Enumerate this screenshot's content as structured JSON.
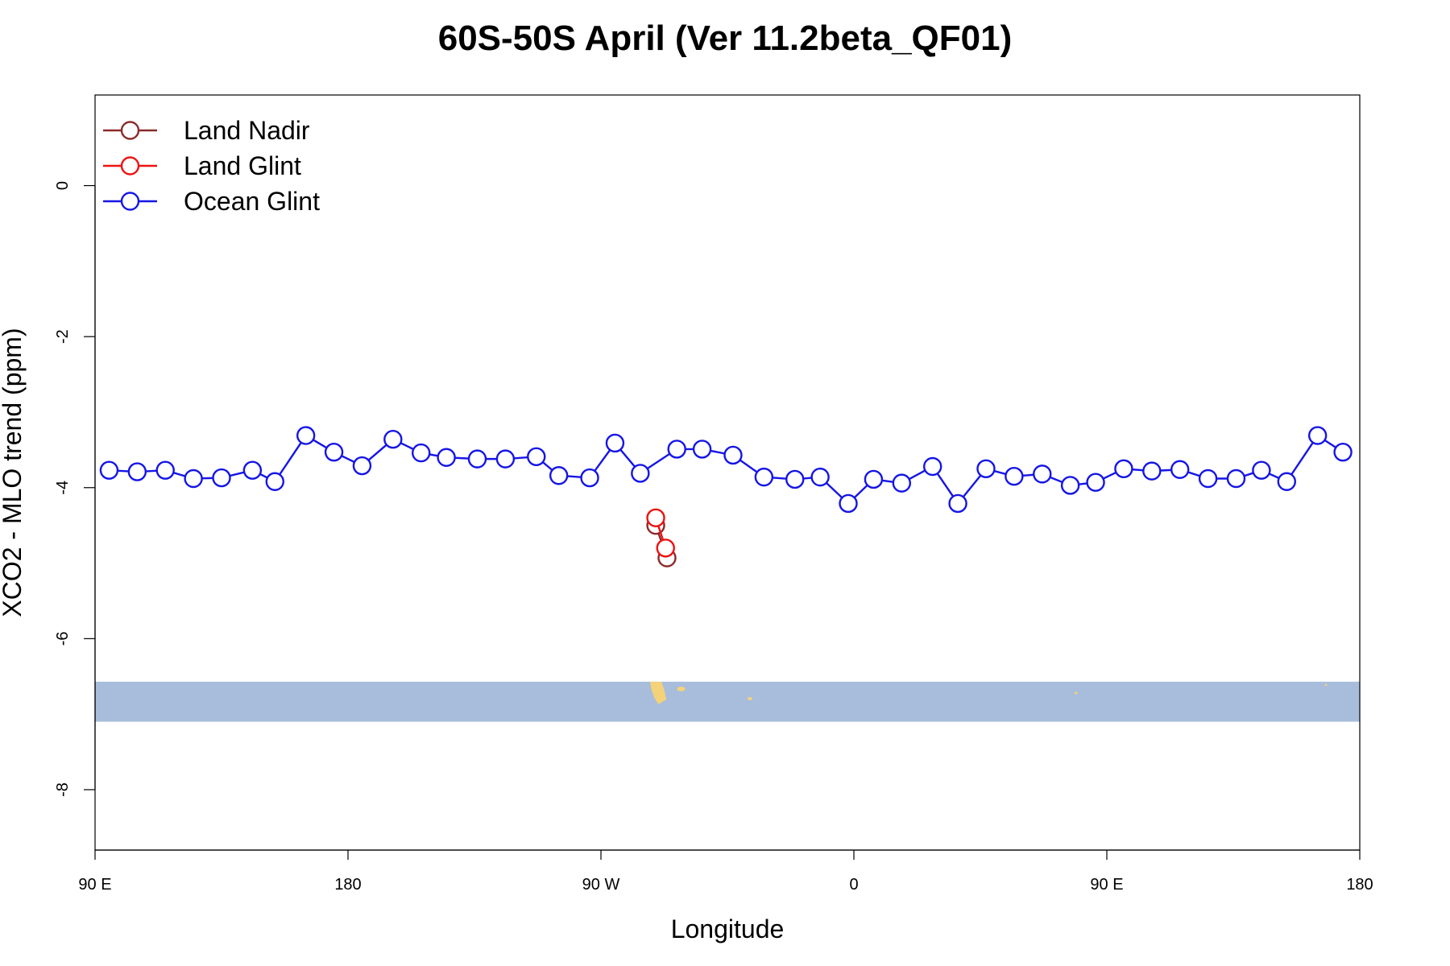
{
  "chart_data": {
    "type": "line",
    "title": "60S-50S April (Ver 11.2beta_QF01)",
    "xlabel": "Longitude",
    "ylabel": "XCO2 - MLO trend (ppm)",
    "xlim": [
      90,
      540
    ],
    "ylim": [
      -8.8,
      1.2
    ],
    "x_ticks": [
      {
        "value": 90,
        "label": "90 E"
      },
      {
        "value": 180,
        "label": "180"
      },
      {
        "value": 270,
        "label": "90 W"
      },
      {
        "value": 360,
        "label": "0"
      },
      {
        "value": 450,
        "label": "90 E"
      },
      {
        "value": 540,
        "label": "180"
      }
    ],
    "y_ticks": [
      {
        "value": 0,
        "label": "0"
      },
      {
        "value": -2,
        "label": "-2"
      },
      {
        "value": -4,
        "label": "-4"
      },
      {
        "value": -6,
        "label": "-6"
      },
      {
        "value": -8,
        "label": "-8"
      }
    ],
    "legend": {
      "position": "top-left",
      "entries": [
        {
          "name": "Land Nadir",
          "color": "#8b2a2a"
        },
        {
          "name": "Land Glint",
          "color": "#ee1111"
        },
        {
          "name": "Ocean Glint",
          "color": "#1515e6"
        }
      ]
    },
    "series": [
      {
        "name": "Land Nadir",
        "color": "#8b2a2a",
        "x": [
          289.5,
          293.5
        ],
        "y": [
          -4.5,
          -4.93
        ]
      },
      {
        "name": "Land Glint",
        "color": "#ee1111",
        "x": [
          289.5,
          293
        ],
        "y": [
          -4.4,
          -4.8
        ]
      },
      {
        "name": "Ocean Glint",
        "color": "#1515e6",
        "x": [
          95,
          105,
          115,
          125,
          135,
          146,
          154,
          165,
          175,
          185,
          196,
          206,
          215,
          226,
          236,
          247,
          255,
          266,
          275,
          284,
          297,
          306,
          317,
          328,
          339,
          348,
          358,
          367,
          377,
          388,
          397,
          407,
          417,
          427,
          437,
          446,
          456,
          466,
          476,
          486,
          496,
          505,
          514,
          525,
          534
        ],
        "y": [
          -3.77,
          -3.79,
          -3.77,
          -3.88,
          -3.87,
          -3.77,
          -3.92,
          -3.31,
          -3.53,
          -3.71,
          -3.36,
          -3.54,
          -3.6,
          -3.62,
          -3.62,
          -3.59,
          -3.84,
          -3.87,
          -3.41,
          -3.81,
          -3.49,
          -3.49,
          -3.57,
          -3.86,
          -3.89,
          -3.86,
          -4.21,
          -3.89,
          -3.94,
          -3.72,
          -4.21,
          -3.75,
          -3.85,
          -3.82,
          -3.97,
          -3.93,
          -3.75,
          -3.78,
          -3.76,
          -3.88,
          -3.88,
          -3.77,
          -3.92,
          -3.31,
          -3.53
        ]
      }
    ],
    "map_strip": {
      "ocean_color": "#a7bddb",
      "land_color": "#f3d27a",
      "y_range": [
        -7.1,
        -6.57
      ]
    }
  }
}
